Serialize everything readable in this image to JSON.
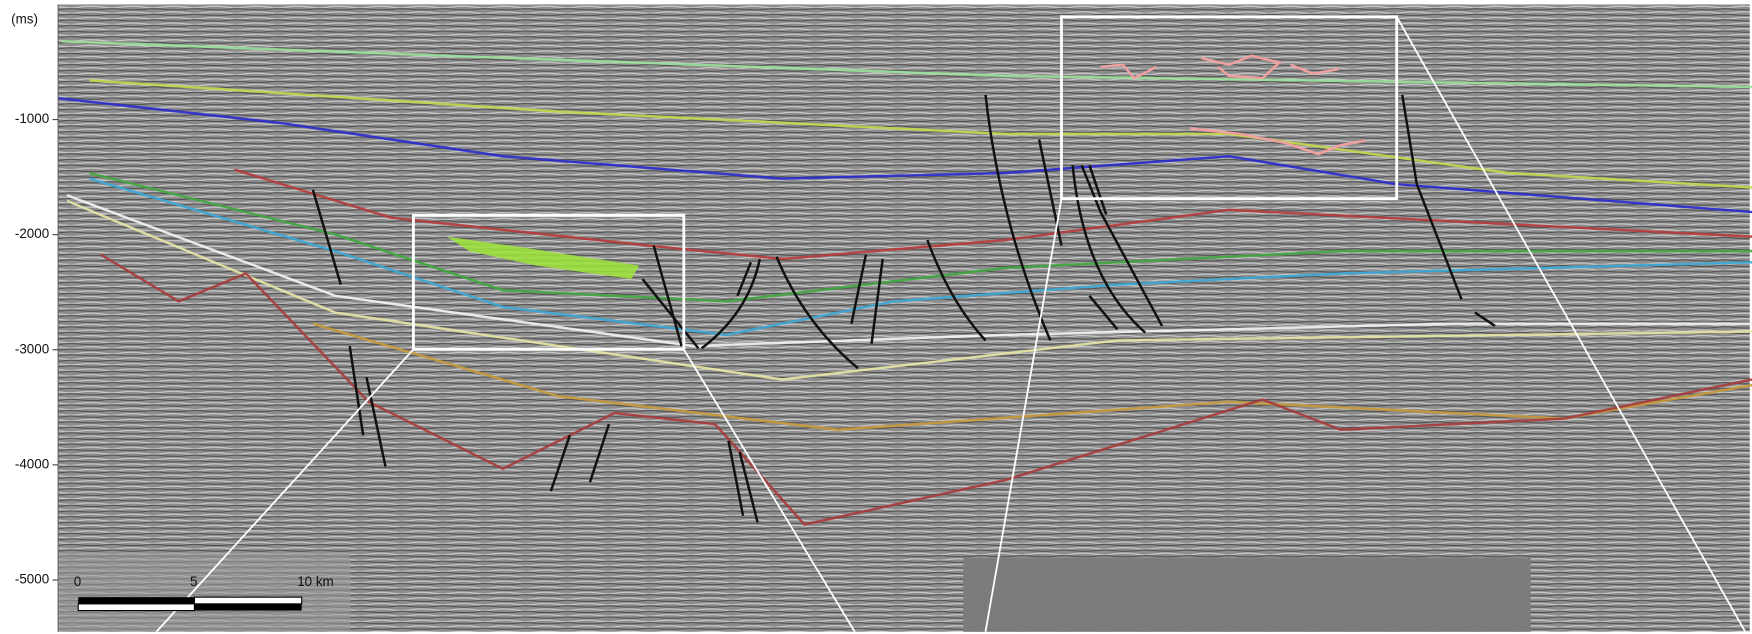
{
  "section": {
    "ylabel": "(ms)",
    "ylim": [
      -5450,
      0
    ],
    "yticks": [
      -1000,
      -2000,
      -3000,
      -4000,
      -5000
    ]
  },
  "scale_bar": {
    "labels": [
      "0",
      "5",
      "10 km"
    ]
  }
}
